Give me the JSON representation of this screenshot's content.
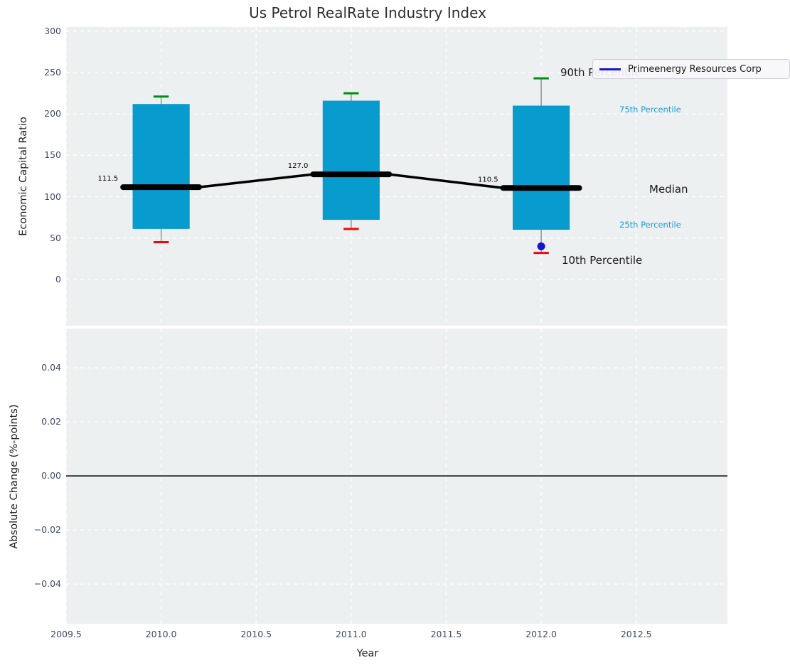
{
  "title": "Us Petrol RealRate Industry Index",
  "legend": {
    "label": "Primeenergy Resources Corp"
  },
  "axis_labels": {
    "top_y": "Economic Capital Ratio",
    "bottom_y": "Absolute Change (%-points)",
    "x": "Year"
  },
  "annotations": {
    "p90": "90th Percentile",
    "p75": "75th Percentile",
    "median": "Median",
    "p25": "25th Percentile",
    "p10": "10th Percentile"
  },
  "colors": {
    "box_fill": "#089bce",
    "cap_90": "#008f0a",
    "cap_10": "#ea0a0a",
    "whisker": "#7a7a7a",
    "median_line": "#000000",
    "company": "#1414d2",
    "grid": "#ffffff",
    "axes_bg": "#edf0f1",
    "tick_text": "#3d4c66",
    "annotation_dark": "#1a1a1a",
    "annotation_cyan": "#1a9fd8",
    "zero_line": "#000000"
  },
  "chart_data": [
    {
      "type": "box",
      "title": "Us Petrol RealRate Industry Index",
      "ylabel": "Economic Capital Ratio",
      "xlim": [
        2009.5,
        2012.98
      ],
      "ylim": [
        -56,
        305
      ],
      "grid": true,
      "legend_position": "upper right",
      "xticks": [
        {
          "v": 2009.5,
          "label": "2009.5"
        },
        {
          "v": 2010.0,
          "label": "2010.0"
        },
        {
          "v": 2010.5,
          "label": "2010.5"
        },
        {
          "v": 2011.0,
          "label": "2011.0"
        },
        {
          "v": 2011.5,
          "label": "2011.5"
        },
        {
          "v": 2012.0,
          "label": "2012.0"
        },
        {
          "v": 2012.5,
          "label": "2012.5"
        }
      ],
      "yticks": [
        {
          "v": 0,
          "label": "0"
        },
        {
          "v": 50,
          "label": "50"
        },
        {
          "v": 100,
          "label": "100"
        },
        {
          "v": 150,
          "label": "150"
        },
        {
          "v": 200,
          "label": "200"
        },
        {
          "v": 250,
          "label": "250"
        },
        {
          "v": 300,
          "label": "300"
        }
      ],
      "boxes": [
        {
          "x": 2010,
          "p10": 45,
          "p25": 61,
          "median": 111.5,
          "p75": 212,
          "p90": 221,
          "median_label": "111.5"
        },
        {
          "x": 2011,
          "p10": 61,
          "p25": 72,
          "median": 127.0,
          "p75": 216,
          "p90": 225,
          "median_label": "127.0"
        },
        {
          "x": 2012,
          "p10": 32,
          "p25": 60,
          "median": 110.5,
          "p75": 210,
          "p90": 243,
          "median_label": "110.5"
        }
      ],
      "median_trend": [
        {
          "x": 2010,
          "y": 111.5
        },
        {
          "x": 2011,
          "y": 127.0
        },
        {
          "x": 2012,
          "y": 110.5
        }
      ],
      "company_point": {
        "name": "Primeenergy Resources Corp",
        "x": 2012,
        "y": 40
      }
    },
    {
      "type": "line",
      "ylabel": "Absolute Change (%-points)",
      "xlabel": "Year",
      "xlim": [
        2009.5,
        2012.98
      ],
      "ylim": [
        -0.0547,
        0.0545
      ],
      "grid": true,
      "zero_line": 0.0,
      "series": [],
      "yticks": [
        {
          "v": 0.04,
          "label": "0.04"
        },
        {
          "v": 0.02,
          "label": "0.02"
        },
        {
          "v": 0.0,
          "label": "0.00"
        },
        {
          "v": -0.02,
          "label": "−0.02"
        },
        {
          "v": -0.04,
          "label": "−0.04"
        }
      ]
    }
  ]
}
